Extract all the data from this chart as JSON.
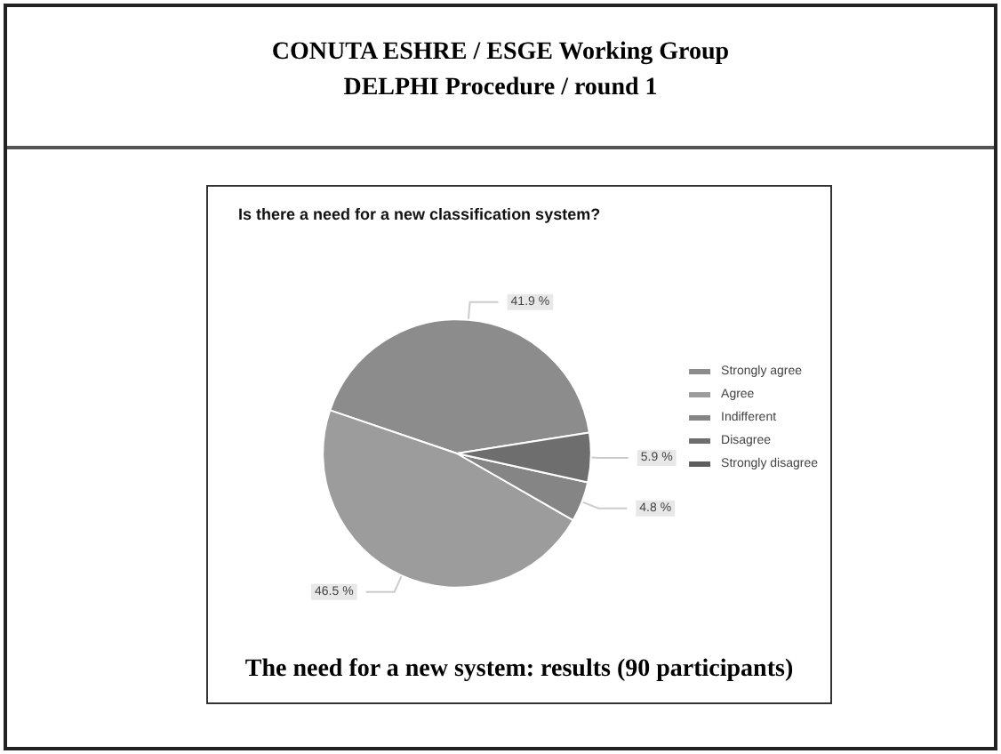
{
  "chart_data": {
    "type": "pie",
    "title": "Is there a need for a new classification system?",
    "categories": [
      "Strongly agree",
      "Agree",
      "Indifferent",
      "Disagree",
      "Strongly disagree"
    ],
    "values": [
      41.9,
      46.5,
      4.8,
      5.9,
      null
    ],
    "value_labels": [
      "41.9 %",
      "46.5 %",
      "4.8 %",
      "5.9 %",
      null
    ],
    "colors": [
      "#8c8c8c",
      "#9c9c9c",
      "#858585",
      "#6e6e6e",
      "#5e5e5e"
    ],
    "legend": "right",
    "annotations": [
      "CONUTA ESHRE / ESGE Working Group",
      "DELPHI Procedure / round 1",
      "The need for a new system: results (90 participants)"
    ]
  }
}
